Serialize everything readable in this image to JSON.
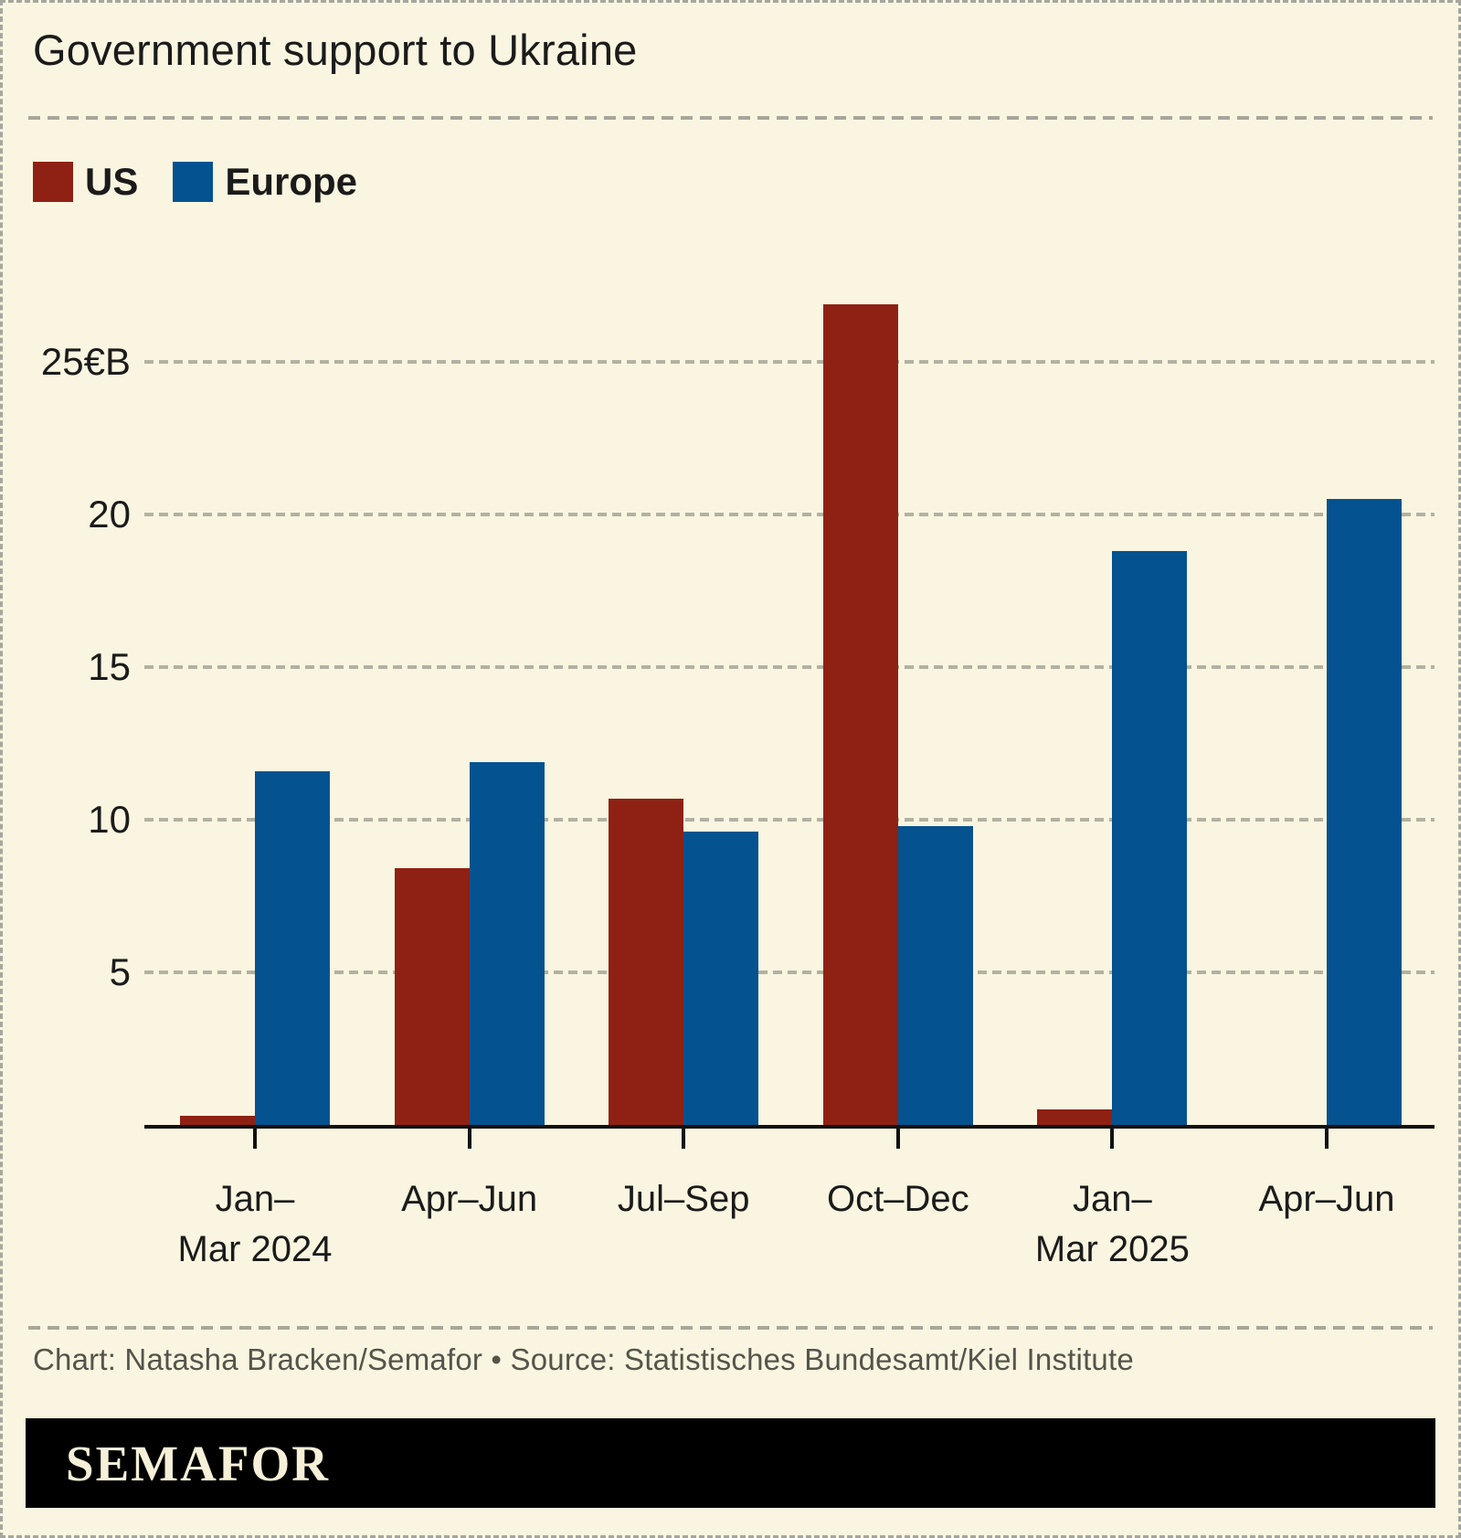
{
  "title": "Government support to Ukraine",
  "legend": [
    {
      "label": "US",
      "color": "#8f2114"
    },
    {
      "label": "Europe",
      "color": "#04528f"
    }
  ],
  "credit": "Chart: Natasha Bracken/Semafor • Source: Statistisches Bundesamt/Kiel Institute",
  "brand": "SEMAFOR",
  "colors": {
    "background": "#f9f5e0",
    "us": "#8f2114",
    "europe": "#04528f",
    "grid": "#b3b1a2",
    "axis": "#111111",
    "credit_text": "#55544b",
    "footer_bar": "#000000",
    "footer_text": "#f6f0d9"
  },
  "chart_data": {
    "type": "bar",
    "unit": "EUR billions",
    "categories": [
      [
        "Jan–",
        "Mar 2024"
      ],
      [
        "Apr–Jun"
      ],
      [
        "Jul–Sep"
      ],
      [
        "Oct–Dec"
      ],
      [
        "Jan–",
        "Mar 2025"
      ],
      [
        "Apr–Jun"
      ]
    ],
    "series": [
      {
        "name": "US",
        "color": "#8f2114",
        "values": [
          0.3,
          8.4,
          10.7,
          26.9,
          0.5,
          0
        ]
      },
      {
        "name": "Europe",
        "color": "#04528f",
        "values": [
          11.6,
          11.9,
          9.6,
          9.8,
          18.8,
          20.5
        ]
      }
    ],
    "yticks": [
      5,
      10,
      15,
      20,
      25
    ],
    "ytick_labels": [
      "5",
      "10",
      "15",
      "20",
      "25€B"
    ],
    "ylim": [
      0,
      28
    ],
    "grid": "horizontal-dashed",
    "legend_position": "top-left"
  }
}
